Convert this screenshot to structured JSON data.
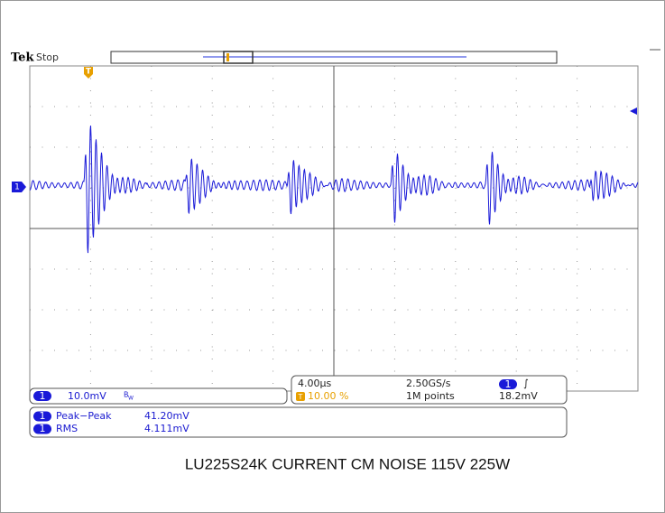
{
  "header": {
    "brand": "Tek",
    "status": "Stop",
    "trigger_marker": "T",
    "channel_marker": "1"
  },
  "channel": {
    "badge": "1",
    "scale": "10.0mV",
    "bandwidth": "B",
    "bandwidth_sub": "W"
  },
  "timebase": {
    "scale": "4.00μs",
    "sample_rate": "2.50GS/s",
    "trigger_badge": "1",
    "trigger_slope": "∫",
    "position_marker": "T",
    "position": "10.00 %",
    "record_length": "1M points",
    "trigger_level": "18.2mV"
  },
  "measurements": [
    {
      "badge": "1",
      "name": "Peak−Peak",
      "value": "41.20mV"
    },
    {
      "badge": "1",
      "name": "RMS",
      "value": "4.111mV"
    }
  ],
  "caption": "LU225S24K CURRENT CM NOISE 115V 225W"
}
